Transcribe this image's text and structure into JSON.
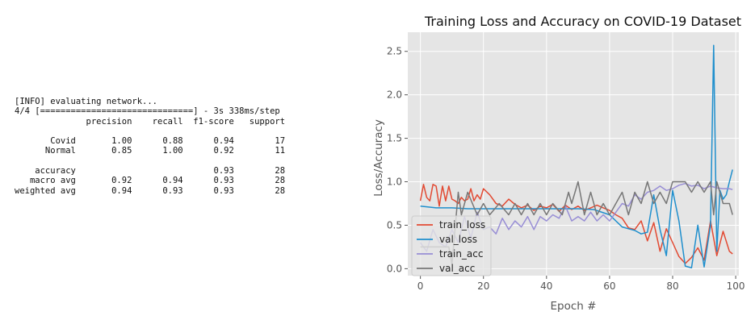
{
  "console": {
    "lines": [
      "[INFO] evaluating network...",
      "4/4 [==============================] - 3s 338ms/step",
      "              precision    recall  f1-score   support",
      "",
      "       Covid       1.00      0.88      0.94        17",
      "      Normal       0.85      1.00      0.92        11",
      "",
      "    accuracy                           0.93        28",
      "   macro avg       0.92      0.94      0.93        28",
      "weighted avg       0.94      0.93      0.93        28"
    ]
  },
  "chart_data": {
    "type": "line",
    "title": "Training Loss and Accuracy on COVID-19 Dataset",
    "xlabel": "Epoch #",
    "ylabel": "Loss/Accuracy",
    "xlim": [
      -4,
      101
    ],
    "ylim": [
      -0.08,
      2.72
    ],
    "xticks": [
      0,
      20,
      40,
      60,
      80,
      100
    ],
    "yticks": [
      0.0,
      0.5,
      1.0,
      1.5,
      2.0,
      2.5
    ],
    "grid": true,
    "background": "#e5e5e5",
    "legend_position": "lower-left",
    "series": [
      {
        "name": "train_loss",
        "color": "#e24a33",
        "x": [
          0,
          1,
          2,
          3,
          4,
          5,
          6,
          7,
          8,
          9,
          10,
          11,
          12,
          13,
          14,
          15,
          16,
          17,
          18,
          19,
          20,
          22,
          24,
          26,
          28,
          30,
          32,
          34,
          36,
          38,
          40,
          42,
          44,
          46,
          48,
          50,
          52,
          54,
          56,
          58,
          60,
          62,
          64,
          66,
          68,
          70,
          72,
          74,
          76,
          78,
          80,
          82,
          84,
          86,
          88,
          90,
          92,
          94,
          96,
          98,
          99
        ],
        "y": [
          0.78,
          0.97,
          0.82,
          0.78,
          0.97,
          0.95,
          0.72,
          0.95,
          0.78,
          0.95,
          0.8,
          0.78,
          0.75,
          0.82,
          0.78,
          0.8,
          0.92,
          0.78,
          0.85,
          0.8,
          0.92,
          0.85,
          0.75,
          0.72,
          0.8,
          0.74,
          0.7,
          0.73,
          0.67,
          0.72,
          0.7,
          0.74,
          0.66,
          0.73,
          0.68,
          0.72,
          0.67,
          0.7,
          0.73,
          0.7,
          0.67,
          0.62,
          0.58,
          0.47,
          0.45,
          0.55,
          0.32,
          0.53,
          0.2,
          0.46,
          0.3,
          0.14,
          0.06,
          0.13,
          0.24,
          0.1,
          0.55,
          0.15,
          0.43,
          0.2,
          0.17
        ]
      },
      {
        "name": "val_loss",
        "color": "#1f8fcd",
        "x": [
          0,
          5,
          10,
          15,
          20,
          25,
          30,
          35,
          40,
          45,
          50,
          55,
          60,
          62,
          64,
          66,
          68,
          70,
          72,
          74,
          76,
          78,
          80,
          82,
          84,
          86,
          88,
          90,
          92,
          93,
          94,
          95,
          96,
          97,
          98,
          99
        ],
        "y": [
          0.72,
          0.7,
          0.7,
          0.69,
          0.69,
          0.69,
          0.69,
          0.69,
          0.69,
          0.69,
          0.69,
          0.68,
          0.62,
          0.55,
          0.48,
          0.46,
          0.44,
          0.4,
          0.42,
          0.85,
          0.45,
          0.15,
          0.9,
          0.55,
          0.03,
          0.01,
          0.5,
          0.02,
          0.5,
          2.57,
          0.2,
          0.9,
          0.8,
          0.85,
          1.0,
          1.14
        ]
      },
      {
        "name": "train_acc",
        "color": "#988ed5",
        "x": [
          0,
          2,
          4,
          6,
          8,
          10,
          12,
          14,
          16,
          18,
          20,
          22,
          24,
          26,
          28,
          30,
          32,
          34,
          36,
          38,
          40,
          42,
          44,
          46,
          48,
          50,
          52,
          54,
          56,
          58,
          60,
          62,
          64,
          66,
          68,
          70,
          72,
          74,
          76,
          78,
          80,
          82,
          84,
          86,
          88,
          90,
          92,
          94,
          96,
          98,
          99
        ],
        "y": [
          0.3,
          0.2,
          0.45,
          0.3,
          0.25,
          0.45,
          0.3,
          0.6,
          0.35,
          0.65,
          0.45,
          0.48,
          0.4,
          0.58,
          0.45,
          0.55,
          0.48,
          0.6,
          0.45,
          0.6,
          0.55,
          0.62,
          0.58,
          0.72,
          0.55,
          0.6,
          0.55,
          0.65,
          0.55,
          0.62,
          0.55,
          0.65,
          0.75,
          0.72,
          0.85,
          0.8,
          0.88,
          0.9,
          0.95,
          0.9,
          0.92,
          0.96,
          0.98,
          0.95,
          0.96,
          0.92,
          0.95,
          0.93,
          0.92,
          0.92,
          0.91
        ]
      },
      {
        "name": "val_acc",
        "color": "#777777",
        "x": [
          0,
          3,
          6,
          9,
          10,
          12,
          13,
          15,
          18,
          20,
          22,
          25,
          28,
          30,
          32,
          34,
          36,
          38,
          40,
          42,
          45,
          47,
          48,
          50,
          52,
          54,
          56,
          58,
          60,
          62,
          64,
          66,
          68,
          70,
          72,
          74,
          76,
          78,
          80,
          82,
          84,
          86,
          88,
          90,
          92,
          93,
          94,
          96,
          98,
          99
        ],
        "y": [
          0.25,
          0.25,
          0.25,
          0.25,
          0.05,
          0.88,
          0.62,
          0.88,
          0.62,
          0.75,
          0.62,
          0.75,
          0.62,
          0.75,
          0.62,
          0.75,
          0.62,
          0.75,
          0.62,
          0.75,
          0.62,
          0.88,
          0.75,
          1.0,
          0.62,
          0.88,
          0.62,
          0.75,
          0.62,
          0.75,
          0.88,
          0.62,
          0.88,
          0.75,
          1.0,
          0.75,
          0.88,
          0.75,
          1.0,
          1.0,
          1.0,
          0.88,
          1.0,
          0.88,
          1.0,
          0.62,
          1.0,
          0.75,
          0.75,
          0.62
        ]
      }
    ]
  }
}
